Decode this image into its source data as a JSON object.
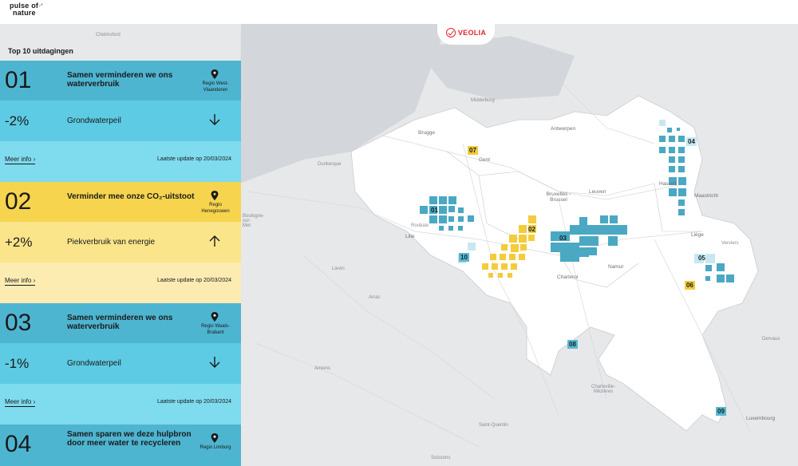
{
  "brand": {
    "line1": "pulse of",
    "line2": "nature",
    "partner": "VEOLIA"
  },
  "panel": {
    "title": "Top 10 uitdagingen",
    "challenges": [
      {
        "number": "01",
        "title": "Samen verminderen we ons waterverbruik",
        "region": "Regio West-Vlaanderen",
        "kpi_value": "-2%",
        "kpi_label": "Grondwaterpeil",
        "trend": "down",
        "more": "Meer info",
        "update": "Laatste update op 20/03/2024",
        "theme": "blue"
      },
      {
        "number": "02",
        "title": "Verminder mee onze CO₂-uitstoot",
        "region": "Regio Henegouwen",
        "kpi_value": "+2%",
        "kpi_label": "Piekverbruik van energie",
        "trend": "up",
        "more": "Meer info",
        "update": "Laatste update op 20/03/2024",
        "theme": "yellow"
      },
      {
        "number": "03",
        "title": "Samen verminderen we ons waterverbruik",
        "region": "Regio Waals-Brabant",
        "kpi_value": "-1%",
        "kpi_label": "Grondwaterpeil",
        "trend": "down",
        "more": "Meer info",
        "update": "Laatste update op 20/03/2024",
        "theme": "blue"
      },
      {
        "number": "04",
        "title": "Samen sparen we deze hulpbron door meer water te recycleren",
        "region": "Regio Limburg",
        "theme": "blue"
      }
    ]
  },
  "map": {
    "places": [
      "Chelmsford",
      "Middelburg",
      "Antwerpen",
      "Brugge",
      "Gent",
      "Dunkerque",
      "Roubaix",
      "Lille",
      "Bruxelles - Brussel",
      "Leuven",
      "Hasselt",
      "Maastricht",
      "Liège",
      "Verviers",
      "Namur",
      "Charleroi",
      "Boulogne-sur-Mer",
      "Lievin",
      "Arras",
      "Amiens",
      "Charleville-Mézières",
      "Luxembourg",
      "Dervaux",
      "Soissons",
      "Saint-Quentin"
    ],
    "markers": [
      {
        "id": "01",
        "color": "blue"
      },
      {
        "id": "02",
        "color": "yellow"
      },
      {
        "id": "03",
        "color": "blue"
      },
      {
        "id": "04",
        "color": "blue"
      },
      {
        "id": "05",
        "color": "blue"
      },
      {
        "id": "06",
        "color": "yellow"
      },
      {
        "id": "07",
        "color": "yellow"
      },
      {
        "id": "08",
        "color": "blue"
      },
      {
        "id": "09",
        "color": "blue"
      },
      {
        "id": "10",
        "color": "blue"
      }
    ],
    "colors": {
      "blue": "#4aa8c3",
      "lightblue": "#c8e8f1",
      "yellow": "#f4cc3b",
      "land": "#e7e8ea",
      "sea": "#d3d6da",
      "belgium": "#ffffff"
    }
  }
}
